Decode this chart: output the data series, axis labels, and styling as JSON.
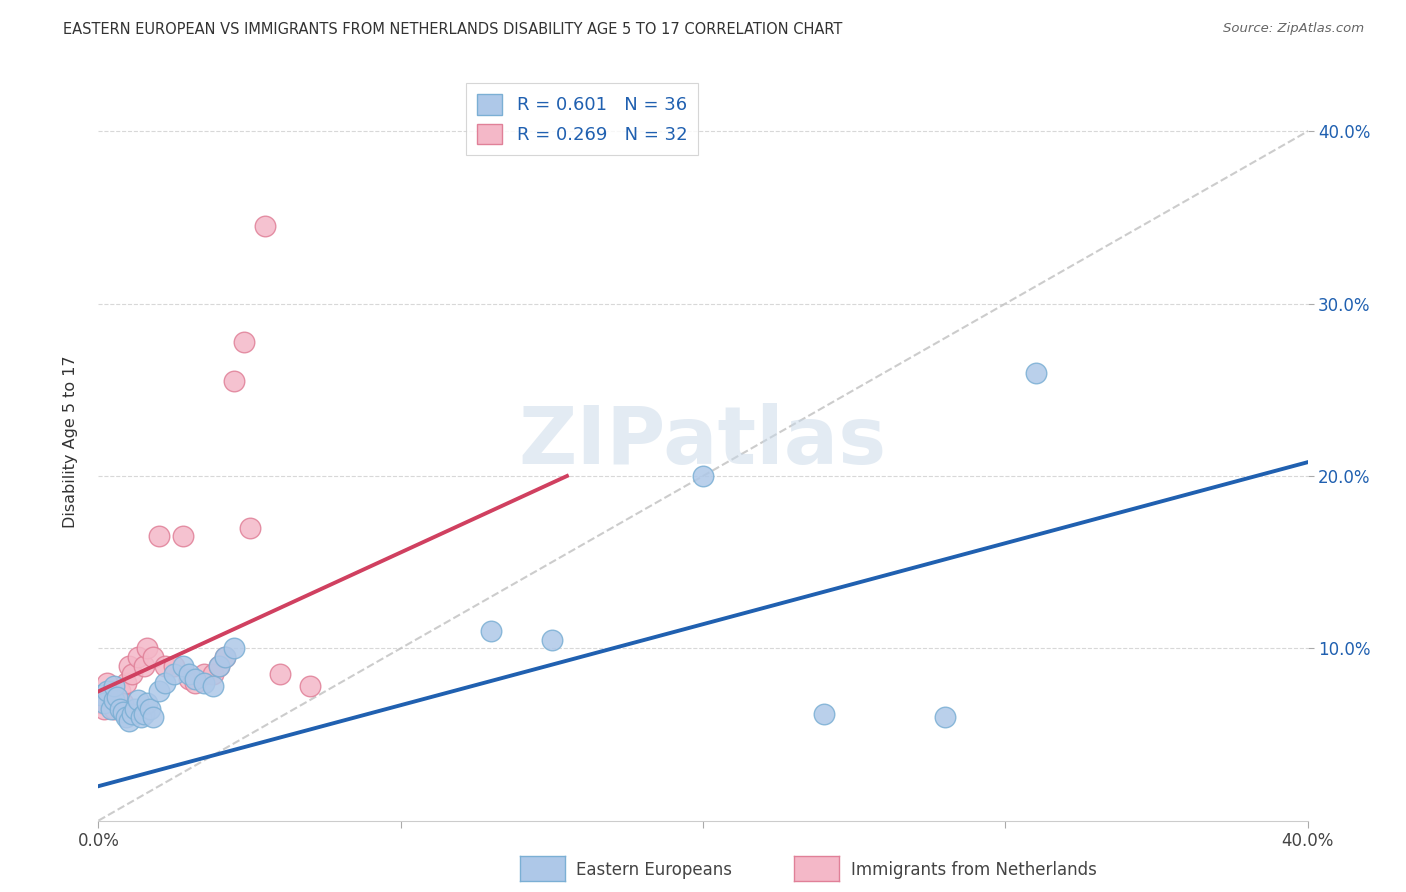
{
  "title": "EASTERN EUROPEAN VS IMMIGRANTS FROM NETHERLANDS DISABILITY AGE 5 TO 17 CORRELATION CHART",
  "source": "Source: ZipAtlas.com",
  "ylabel": "Disability Age 5 to 17",
  "xlim": [
    0.0,
    0.4
  ],
  "ylim": [
    0.0,
    0.44
  ],
  "xticks": [
    0.0,
    0.1,
    0.2,
    0.3,
    0.4
  ],
  "xtick_labels": [
    "0.0%",
    "",
    "",
    "",
    "40.0%"
  ],
  "yticks": [
    0.1,
    0.2,
    0.3,
    0.4
  ],
  "right_ytick_labels": [
    "10.0%",
    "20.0%",
    "30.0%",
    "40.0%"
  ],
  "legend_r1": "R = 0.601",
  "legend_n1": "N = 36",
  "legend_r2": "R = 0.269",
  "legend_n2": "N = 32",
  "blue_scatter_color": "#aec8e8",
  "blue_edge_color": "#7bafd4",
  "pink_scatter_color": "#f4b8c8",
  "pink_edge_color": "#e08098",
  "trend_blue": "#2060b0",
  "trend_pink": "#d04060",
  "blue_scatter_x": [
    0.001,
    0.002,
    0.003,
    0.004,
    0.005,
    0.005,
    0.006,
    0.007,
    0.008,
    0.009,
    0.01,
    0.011,
    0.012,
    0.013,
    0.014,
    0.015,
    0.016,
    0.017,
    0.018,
    0.02,
    0.022,
    0.025,
    0.028,
    0.03,
    0.032,
    0.035,
    0.038,
    0.04,
    0.042,
    0.045,
    0.13,
    0.15,
    0.2,
    0.24,
    0.28,
    0.31
  ],
  "blue_scatter_y": [
    0.073,
    0.068,
    0.075,
    0.065,
    0.07,
    0.078,
    0.072,
    0.065,
    0.063,
    0.06,
    0.058,
    0.062,
    0.065,
    0.07,
    0.06,
    0.062,
    0.068,
    0.065,
    0.06,
    0.075,
    0.08,
    0.085,
    0.09,
    0.085,
    0.082,
    0.08,
    0.078,
    0.09,
    0.095,
    0.1,
    0.11,
    0.105,
    0.2,
    0.062,
    0.06,
    0.26
  ],
  "pink_scatter_x": [
    0.001,
    0.002,
    0.003,
    0.003,
    0.004,
    0.005,
    0.006,
    0.007,
    0.008,
    0.009,
    0.01,
    0.011,
    0.013,
    0.015,
    0.016,
    0.018,
    0.02,
    0.022,
    0.025,
    0.028,
    0.03,
    0.032,
    0.035,
    0.038,
    0.04,
    0.042,
    0.045,
    0.048,
    0.05,
    0.055,
    0.06,
    0.07
  ],
  "pink_scatter_y": [
    0.068,
    0.065,
    0.072,
    0.08,
    0.075,
    0.065,
    0.07,
    0.075,
    0.068,
    0.08,
    0.09,
    0.085,
    0.095,
    0.09,
    0.1,
    0.095,
    0.165,
    0.09,
    0.09,
    0.165,
    0.082,
    0.08,
    0.085,
    0.085,
    0.09,
    0.095,
    0.255,
    0.278,
    0.17,
    0.345,
    0.085,
    0.078
  ],
  "blue_trend_x": [
    0.0,
    0.4
  ],
  "blue_trend_y": [
    0.02,
    0.208
  ],
  "pink_trend_x": [
    0.0,
    0.155
  ],
  "pink_trend_y": [
    0.075,
    0.2
  ],
  "ref_line_x": [
    0.0,
    0.44
  ],
  "ref_line_y": [
    0.0,
    0.44
  ],
  "watermark_text": "ZIPatlas",
  "watermark_color": "#c8d8e8",
  "background_color": "#ffffff",
  "grid_color": "#d8d8d8",
  "legend_color": "#2060b0"
}
